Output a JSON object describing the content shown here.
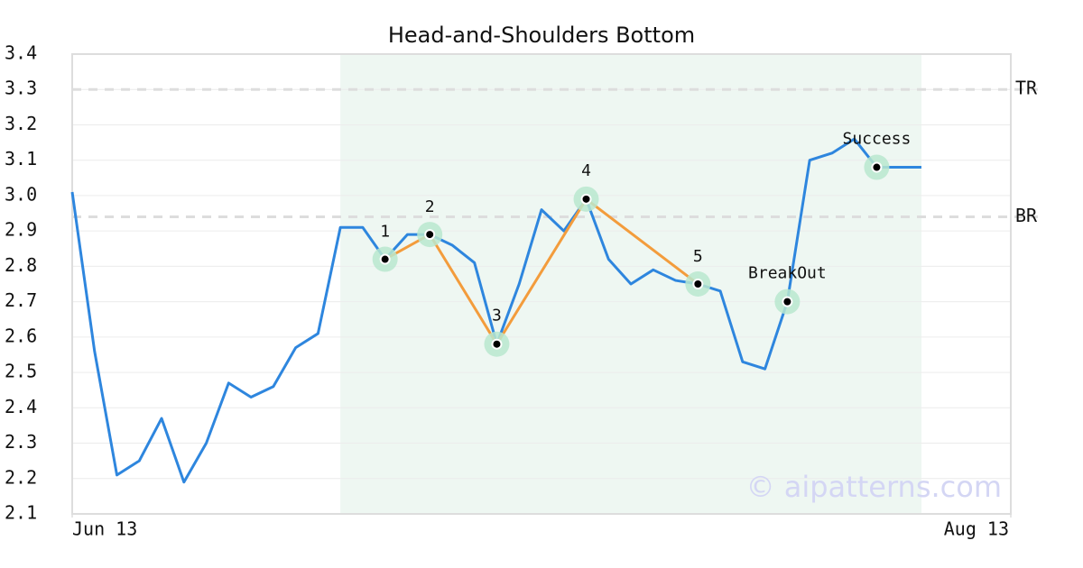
{
  "chart_data": {
    "type": "line",
    "title": "Head-and-Shoulders Bottom",
    "watermark": "© aipatterns.com",
    "xlim": [
      0,
      42
    ],
    "xticks": [
      {
        "value": 0,
        "label": "Jun 13"
      },
      {
        "value": 42,
        "label": "Aug 13"
      }
    ],
    "ylim": [
      2.1,
      3.4
    ],
    "yticks": [
      {
        "value": 2.1,
        "label": "2.1"
      },
      2.2,
      2.3,
      2.4,
      2.5,
      2.6,
      2.7,
      2.8,
      2.9,
      {
        "value": 3,
        "label": "3.0"
      },
      3.1,
      3.2,
      3.3,
      3.4
    ],
    "grid": true,
    "series": [
      {
        "color": "#2e86de",
        "values": [
          3.01,
          2.56,
          2.21,
          2.25,
          2.37,
          2.19,
          2.3,
          2.47,
          2.43,
          2.46,
          2.57,
          2.61,
          2.91,
          2.91,
          2.82,
          2.89,
          2.89,
          2.86,
          2.81,
          2.58,
          2.75,
          2.96,
          2.9,
          2.99,
          2.82,
          2.75,
          2.79,
          2.76,
          2.75,
          2.73,
          2.53,
          2.51,
          2.7,
          3.1,
          3.12,
          3.16,
          3.08,
          3.08,
          3.08
        ]
      }
    ],
    "highlight": {
      "x": [
        12,
        38
      ],
      "color": "#eef7f2"
    },
    "pattern": {
      "color": "#f39c3c",
      "points": [
        {
          "label": "1",
          "x": 14,
          "value": 2.82
        },
        {
          "label": "2",
          "x": 16,
          "value": 2.89
        },
        {
          "label": "3",
          "x": 19,
          "value": 2.58
        },
        {
          "label": "4",
          "x": 23,
          "value": 2.99
        },
        {
          "label": "5",
          "x": 28,
          "value": 2.75
        }
      ]
    },
    "events": [
      {
        "label": "BreakOut",
        "x": 32,
        "value": 2.7
      },
      {
        "label": "Success",
        "x": 36,
        "value": 3.08
      }
    ],
    "reference_lines": [
      {
        "label": "TR",
        "value": 3.3
      },
      {
        "label": "BR",
        "value": 2.94
      }
    ]
  }
}
